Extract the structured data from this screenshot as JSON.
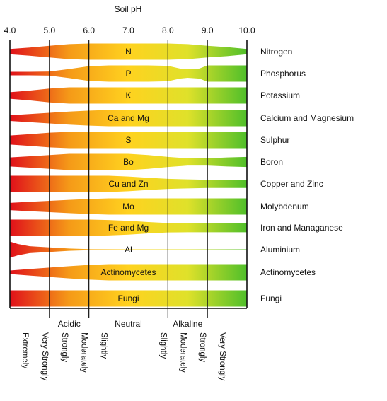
{
  "chart_data": {
    "type": "area",
    "title": "Soil pH",
    "x_ticks": [
      "4.0",
      "5.0",
      "6.0",
      "7.0",
      "8.0",
      "9.0",
      "10.0"
    ],
    "xlim": [
      4.0,
      10.0
    ],
    "gradient_colors": [
      "#e0101a",
      "#f59a18",
      "#ffd21f",
      "#dfe12a",
      "#4fbf2a"
    ],
    "series": [
      {
        "name": "Nitrogen",
        "band_label": "N",
        "x": [
          4.0,
          4.5,
          5.0,
          5.5,
          6.0,
          6.5,
          7.0,
          7.5,
          8.0,
          8.5,
          9.0,
          9.5,
          10.0
        ],
        "width": [
          0.33,
          0.5,
          0.72,
          0.92,
          1.0,
          1.0,
          1.0,
          1.0,
          1.0,
          0.92,
          0.72,
          0.55,
          0.33
        ]
      },
      {
        "name": "Phosphorus",
        "band_label": "P",
        "x": [
          4.0,
          4.5,
          5.0,
          5.5,
          6.0,
          6.5,
          7.0,
          7.5,
          8.0,
          8.3,
          8.5,
          8.8,
          9.0,
          9.5,
          10.0
        ],
        "width": [
          0.22,
          0.22,
          0.25,
          0.55,
          0.9,
          1.0,
          1.0,
          1.0,
          0.95,
          0.62,
          0.52,
          0.62,
          1.0,
          1.0,
          1.0
        ]
      },
      {
        "name": "Potassium",
        "band_label": "K",
        "x": [
          4.0,
          4.5,
          5.0,
          5.5,
          6.0,
          7.0,
          8.0,
          9.0,
          10.0
        ],
        "width": [
          0.4,
          0.6,
          0.85,
          1.0,
          1.0,
          1.0,
          1.0,
          1.0,
          1.0
        ]
      },
      {
        "name": "Calcium and Magnesium",
        "band_label": "Ca and Mg",
        "x": [
          4.0,
          4.5,
          5.0,
          5.5,
          6.0,
          6.5,
          7.0,
          8.0,
          9.0,
          10.0
        ],
        "width": [
          0.35,
          0.5,
          0.65,
          0.8,
          0.92,
          1.0,
          1.0,
          1.0,
          1.0,
          1.0
        ]
      },
      {
        "name": "Sulphur",
        "band_label": "S",
        "x": [
          4.0,
          4.5,
          5.0,
          5.5,
          6.0,
          7.0,
          8.0,
          9.0,
          10.0
        ],
        "width": [
          0.55,
          0.72,
          0.9,
          1.0,
          1.0,
          1.0,
          1.0,
          1.0,
          1.0
        ]
      },
      {
        "name": "Boron",
        "band_label": "Bo",
        "x": [
          4.0,
          4.5,
          5.0,
          5.5,
          6.0,
          6.5,
          7.0,
          7.5,
          8.0,
          8.5,
          9.0,
          9.5,
          10.0
        ],
        "width": [
          0.55,
          0.7,
          0.85,
          1.0,
          1.0,
          1.0,
          1.0,
          0.85,
          0.62,
          0.45,
          0.45,
          0.55,
          0.62
        ]
      },
      {
        "name": "Copper and Zinc",
        "band_label": "Cu and Zn",
        "x": [
          4.0,
          5.0,
          6.0,
          6.5,
          7.0,
          7.5,
          8.0,
          8.5,
          9.0,
          10.0
        ],
        "width": [
          1.0,
          1.0,
          1.0,
          1.0,
          0.9,
          0.75,
          0.62,
          0.55,
          0.5,
          0.5
        ]
      },
      {
        "name": "Molybdenum",
        "band_label": "Mo",
        "x": [
          4.0,
          4.5,
          5.0,
          5.5,
          6.0,
          6.5,
          7.0,
          8.0,
          9.0,
          10.0
        ],
        "width": [
          0.45,
          0.58,
          0.7,
          0.82,
          0.92,
          1.0,
          1.0,
          1.0,
          1.0,
          1.0
        ]
      },
      {
        "name": "Iron and Managanese",
        "band_label": "Fe and Mg",
        "x": [
          4.0,
          5.0,
          6.0,
          6.5,
          7.0,
          7.5,
          8.0,
          8.5,
          9.0,
          10.0
        ],
        "width": [
          1.0,
          1.0,
          1.0,
          0.95,
          0.85,
          0.7,
          0.58,
          0.55,
          0.55,
          0.55
        ]
      },
      {
        "name": "Aluminium",
        "band_label": "Al",
        "x": [
          4.0,
          4.2,
          4.5,
          5.0,
          5.5,
          6.0,
          7.0,
          8.0,
          9.0,
          10.0
        ],
        "width": [
          1.0,
          0.7,
          0.42,
          0.28,
          0.14,
          0.06,
          0.04,
          0.04,
          0.04,
          0.04
        ]
      },
      {
        "name": "Actinomycetes",
        "band_label": "Actinomycetes",
        "x": [
          4.0,
          4.5,
          5.0,
          5.5,
          6.0,
          6.5,
          7.0,
          8.0,
          9.0,
          10.0
        ],
        "width": [
          0.22,
          0.4,
          0.58,
          0.75,
          0.9,
          1.0,
          1.0,
          1.0,
          1.0,
          1.0
        ]
      },
      {
        "name": "Fungi",
        "band_label": "Fungi",
        "x": [
          4.0,
          5.0,
          6.0,
          7.0,
          8.0,
          9.0,
          10.0
        ],
        "width": [
          1.0,
          1.0,
          1.0,
          1.0,
          1.0,
          1.0,
          1.0
        ]
      }
    ],
    "bottom_groups": [
      {
        "label": "Acidic",
        "x": 5.5
      },
      {
        "label": "Neutral",
        "x": 7.0
      },
      {
        "label": "Alkaline",
        "x": 8.5
      }
    ],
    "bottom_rotated_labels": [
      {
        "label": "Extremely",
        "x": 4.25
      },
      {
        "label": "Very Strongly",
        "x": 4.75
      },
      {
        "label": "Strongly",
        "x": 5.25
      },
      {
        "label": "Moderately",
        "x": 5.75
      },
      {
        "label": "Slightly",
        "x": 6.25
      },
      {
        "label": "Slightly",
        "x": 7.75
      },
      {
        "label": "Moderately",
        "x": 8.25
      },
      {
        "label": "Strongly",
        "x": 8.75
      },
      {
        "label": "Very Strongly",
        "x": 9.25
      }
    ]
  }
}
